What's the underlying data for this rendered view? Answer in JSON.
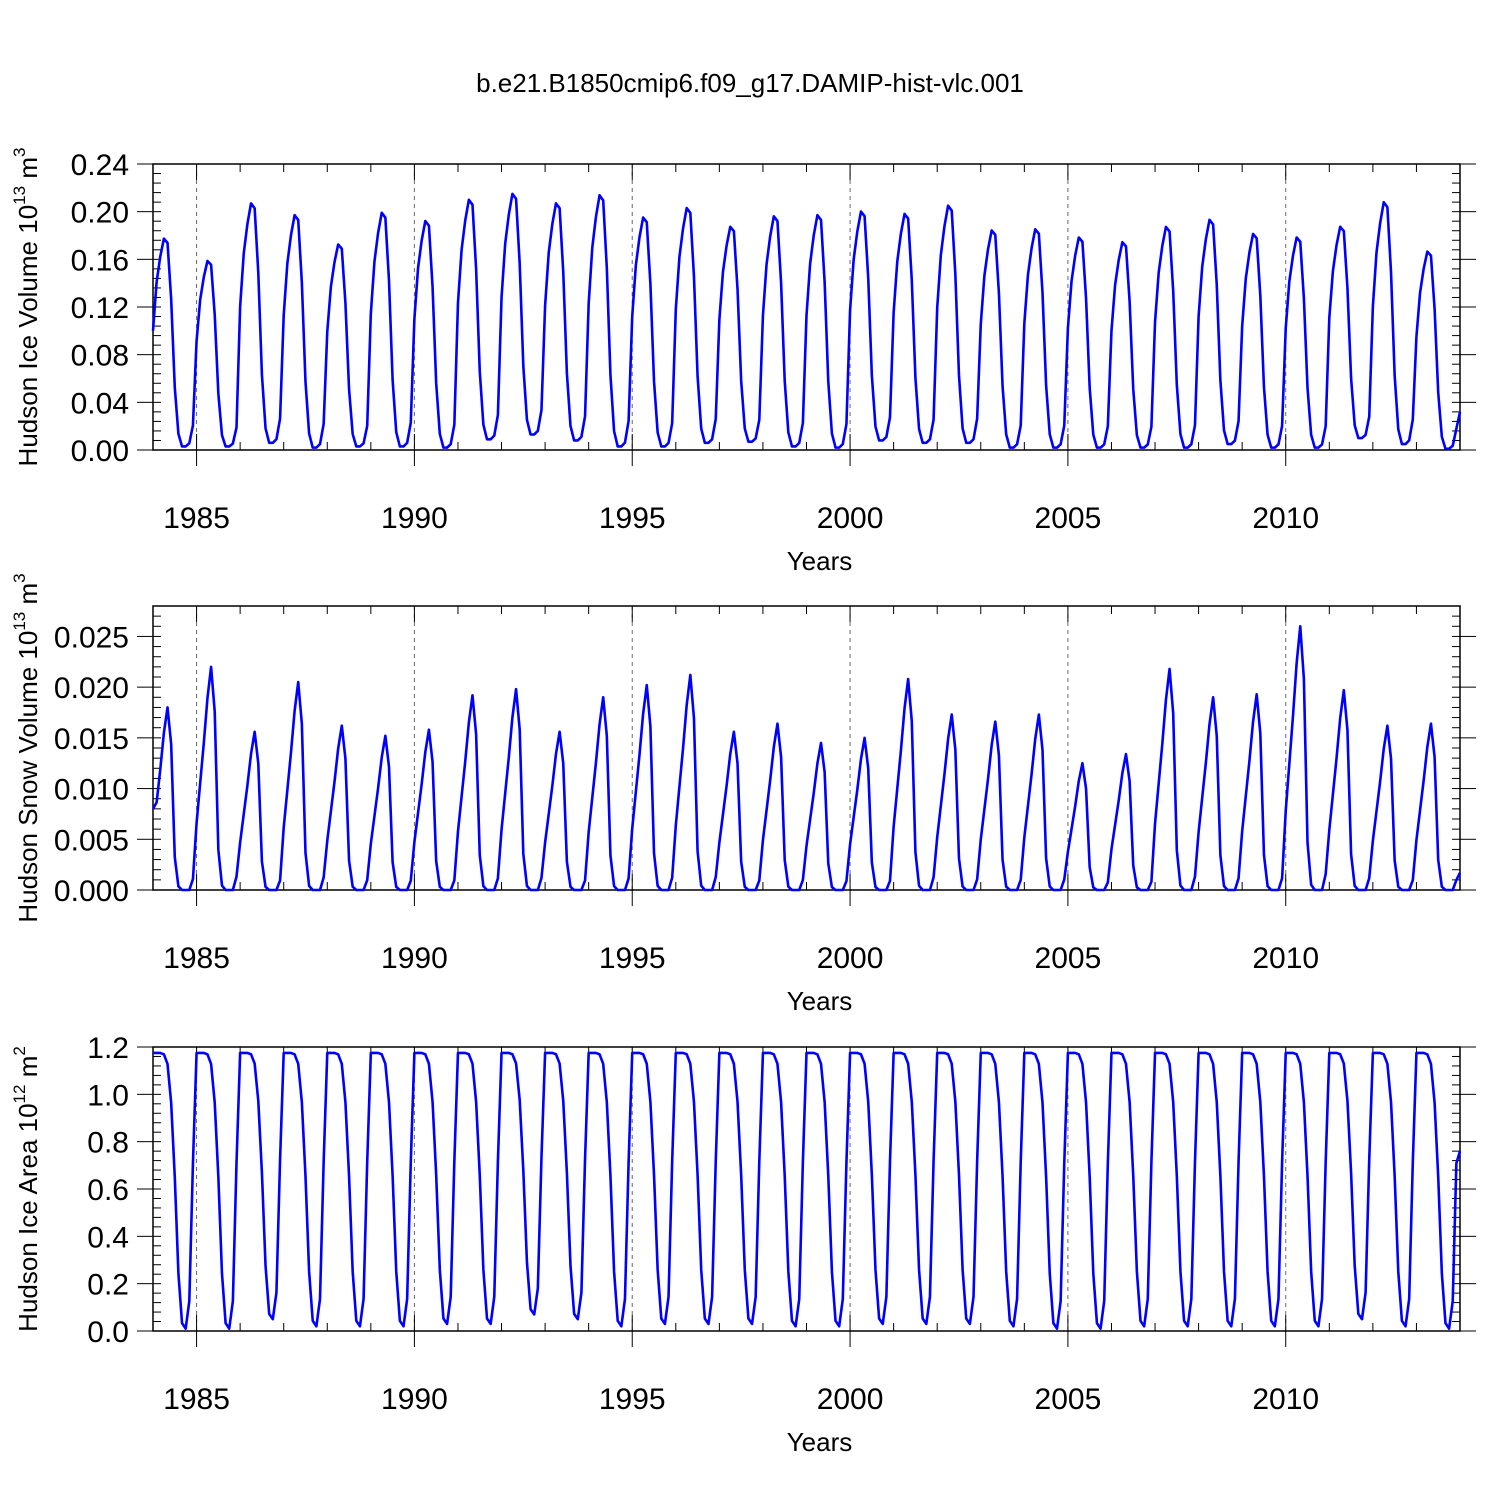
{
  "title": "b.e21.B1850cmip6.f09_g17.DAMIP-hist-vlc.001",
  "chart_data": [
    {
      "type": "line",
      "ylabel": "Hudson Ice Volume 10",
      "ylabel_exp": "13",
      "ylabel_unit": " m",
      "ylabel_unit_exp": "3",
      "xlabel": "Years",
      "xlim": [
        1984.0,
        2014.0
      ],
      "ylim": [
        0.0,
        0.24
      ],
      "yticks": [
        0.0,
        0.04,
        0.08,
        0.12,
        0.16,
        0.2,
        0.24
      ],
      "ytick_labels": [
        "0.00",
        "0.04",
        "0.08",
        "0.12",
        "0.16",
        "0.20",
        "0.24"
      ],
      "xticks": [
        1985,
        1990,
        1995,
        2000,
        2005,
        2010
      ],
      "xtick_labels": [
        "1985",
        "1990",
        "1995",
        "2000",
        "2005",
        "2010"
      ],
      "grid": "dashed vertical lines at major x ticks",
      "color": "#0000ff",
      "start_year": 1984.0,
      "step_months": 1,
      "peaks": [
        0.18,
        0.161,
        0.21,
        0.2,
        0.175,
        0.202,
        0.195,
        0.213,
        0.218,
        0.21,
        0.217,
        0.198,
        0.206,
        0.19,
        0.199,
        0.2,
        0.203,
        0.201,
        0.208,
        0.187,
        0.188,
        0.181,
        0.177,
        0.19,
        0.196,
        0.184,
        0.181,
        0.19,
        0.211,
        0.169
      ],
      "mins": [
        0.003,
        0.003,
        0.006,
        0.002,
        0.003,
        0.003,
        0.002,
        0.009,
        0.013,
        0.008,
        0.003,
        0.003,
        0.006,
        0.007,
        0.003,
        0.002,
        0.008,
        0.006,
        0.006,
        0.002,
        0.002,
        0.002,
        0.002,
        0.002,
        0.005,
        0.002,
        0.002,
        0.01,
        0.005,
        0.001
      ],
      "start_value": 0.1,
      "end_value": 0.032,
      "shape": "volume"
    },
    {
      "type": "line",
      "ylabel": "Hudson Snow Volume 10",
      "ylabel_exp": "13",
      "ylabel_unit": " m",
      "ylabel_unit_exp": "3",
      "xlabel": "Years",
      "xlim": [
        1984.0,
        2014.0
      ],
      "ylim": [
        0.0,
        0.028
      ],
      "yticks": [
        0.0,
        0.005,
        0.01,
        0.015,
        0.02,
        0.025
      ],
      "ytick_labels": [
        "0.000",
        "0.005",
        "0.010",
        "0.015",
        "0.020",
        "0.025"
      ],
      "xticks": [
        1985,
        1990,
        1995,
        2000,
        2005,
        2010
      ],
      "xtick_labels": [
        "1985",
        "1990",
        "1995",
        "2000",
        "2005",
        "2010"
      ],
      "grid": "dashed vertical lines at major x ticks",
      "color": "#0000ff",
      "start_year": 1984.0,
      "step_months": 1,
      "peaks": [
        0.018,
        0.022,
        0.0156,
        0.0205,
        0.0162,
        0.0152,
        0.0158,
        0.0192,
        0.0198,
        0.0156,
        0.019,
        0.0202,
        0.0212,
        0.0156,
        0.0164,
        0.0145,
        0.015,
        0.0208,
        0.0173,
        0.0166,
        0.0173,
        0.0125,
        0.0134,
        0.0218,
        0.019,
        0.0193,
        0.026,
        0.0197,
        0.0162,
        0.0164
      ],
      "mins": [
        0.0,
        0.0,
        0.0,
        0.0,
        0.0,
        0.0,
        0.0,
        0.0,
        0.0,
        0.0,
        0.0,
        0.0,
        0.0,
        0.0,
        0.0,
        0.0,
        0.0,
        0.0,
        0.0,
        0.0,
        0.0,
        0.0,
        0.0,
        0.0,
        0.0,
        0.0,
        0.0,
        0.0,
        0.0,
        0.0
      ],
      "start_value": 0.008,
      "end_value": 0.0017,
      "shape": "snow"
    },
    {
      "type": "line",
      "ylabel": "Hudson Ice Area 10",
      "ylabel_exp": "12",
      "ylabel_unit": " m",
      "ylabel_unit_exp": "2",
      "xlabel": "Years",
      "xlim": [
        1984.0,
        2014.0
      ],
      "ylim": [
        0.0,
        1.2
      ],
      "yticks": [
        0.0,
        0.2,
        0.4,
        0.6,
        0.8,
        1.0,
        1.2
      ],
      "ytick_labels": [
        "0.0",
        "0.2",
        "0.4",
        "0.6",
        "0.8",
        "1.0",
        "1.2"
      ],
      "xticks": [
        1985,
        1990,
        1995,
        2000,
        2005,
        2010
      ],
      "xtick_labels": [
        "1985",
        "1990",
        "1995",
        "2000",
        "2005",
        "2010"
      ],
      "grid": "dashed vertical lines at major x ticks",
      "color": "#0000ff",
      "start_year": 1984.0,
      "step_months": 1,
      "peaks": [
        1.175,
        1.175,
        1.175,
        1.175,
        1.175,
        1.175,
        1.175,
        1.175,
        1.175,
        1.175,
        1.175,
        1.175,
        1.175,
        1.175,
        1.175,
        1.175,
        1.175,
        1.175,
        1.175,
        1.175,
        1.175,
        1.175,
        1.175,
        1.175,
        1.175,
        1.175,
        1.175,
        1.175,
        1.175,
        1.175
      ],
      "mins": [
        0.01,
        0.01,
        0.05,
        0.02,
        0.02,
        0.02,
        0.03,
        0.03,
        0.07,
        0.05,
        0.02,
        0.03,
        0.03,
        0.03,
        0.02,
        0.02,
        0.03,
        0.03,
        0.03,
        0.02,
        0.01,
        0.01,
        0.02,
        0.02,
        0.02,
        0.02,
        0.02,
        0.05,
        0.02,
        0.01
      ],
      "start_value": 1.175,
      "end_value": 0.76,
      "shape": "area"
    }
  ]
}
